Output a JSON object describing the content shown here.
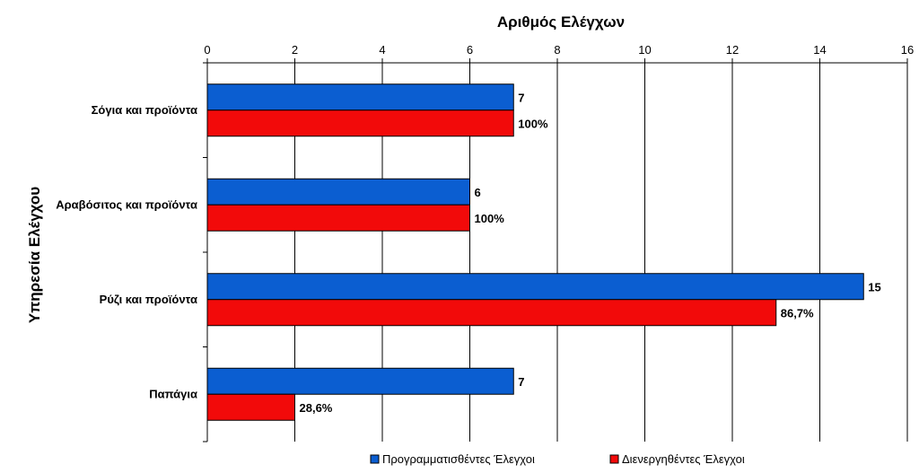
{
  "chart_data": {
    "type": "bar",
    "orientation": "horizontal",
    "title": "",
    "xlabel": "Αριθμός Ελέγχων",
    "ylabel": "Υπηρεσία Ελέγχου",
    "xlim": [
      0,
      16
    ],
    "x_ticks": [
      "0",
      "2",
      "4",
      "6",
      "8",
      "10",
      "12",
      "14",
      "16"
    ],
    "x_axis_position": "top",
    "grid": true,
    "legend_position": "bottom",
    "categories": [
      "Σόγια και προϊόντα",
      "Αραβόσιτος και προϊόντα",
      "Ρύζι και προϊόντα",
      "Παπάγια"
    ],
    "series": [
      {
        "name": "Προγραμματισθέντες Έλεγχοι",
        "color": "#0b5ed1",
        "values": [
          7,
          6,
          15,
          7
        ],
        "data_labels": [
          "7",
          "6",
          "15",
          "7"
        ]
      },
      {
        "name": "Διενεργηθέντες Έλεγχοι",
        "color": "#f20a0a",
        "values": [
          7,
          6,
          13,
          2
        ],
        "data_labels": [
          "100%",
          "100%",
          "86,7%",
          "28,6%"
        ]
      }
    ]
  }
}
